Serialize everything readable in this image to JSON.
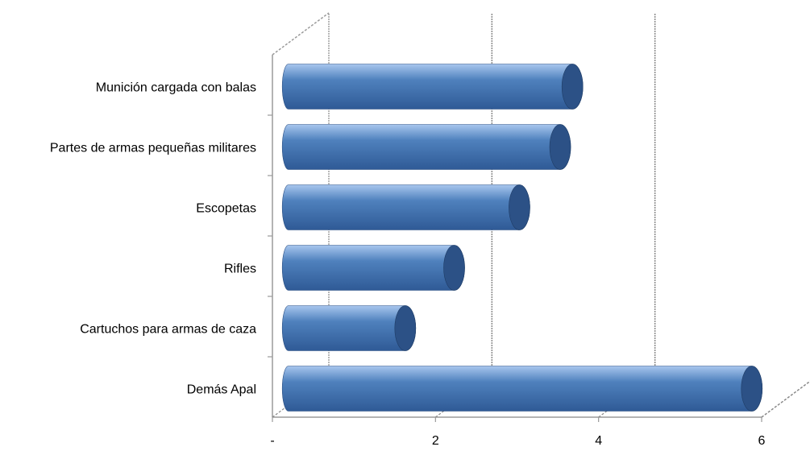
{
  "chart_data": {
    "type": "bar",
    "orientation": "horizontal",
    "style": "3d-cylinder",
    "categories": [
      "Munición cargada con balas",
      "Partes de armas pequeñas militares",
      "Escopetas",
      "Rifles",
      "Cartuchos para armas de caza",
      "Demás Apal"
    ],
    "values": [
      3.6,
      3.45,
      2.95,
      2.15,
      1.55,
      5.8
    ],
    "xlim": [
      0,
      6
    ],
    "xticks": [
      {
        "value": 0,
        "label": "-"
      },
      {
        "value": 2,
        "label": "2"
      },
      {
        "value": 4,
        "label": "4"
      },
      {
        "value": 6,
        "label": "6"
      }
    ],
    "title": "",
    "xlabel": "",
    "ylabel": "",
    "grid": "vertical",
    "legend": "none",
    "colors": {
      "bar_top": "#a8c6ee",
      "bar_mid": "#4f81bd",
      "bar_bottom": "#2f5a96",
      "bar_cap": "#2c5186",
      "grid": "#8a8a8a",
      "wall": "#9a9a9a"
    }
  }
}
